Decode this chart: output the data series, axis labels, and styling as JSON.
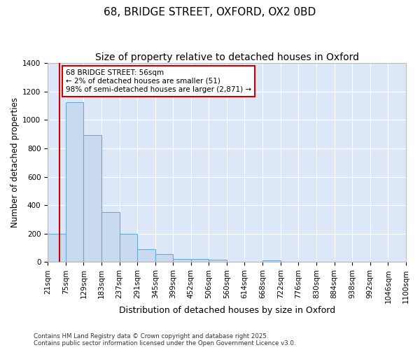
{
  "title1": "68, BRIDGE STREET, OXFORD, OX2 0BD",
  "title2": "Size of property relative to detached houses in Oxford",
  "xlabel": "Distribution of detached houses by size in Oxford",
  "ylabel": "Number of detached properties",
  "bins": [
    21,
    75,
    129,
    183,
    237,
    291,
    345,
    399,
    452,
    506,
    560,
    614,
    668,
    722,
    776,
    830,
    884,
    938,
    992,
    1046,
    1100
  ],
  "counts": [
    200,
    1125,
    895,
    350,
    197,
    90,
    55,
    22,
    20,
    15,
    0,
    0,
    10,
    0,
    0,
    0,
    0,
    0,
    0,
    0
  ],
  "bar_color": "#c9d9f0",
  "bar_edge_color": "#6aaad4",
  "property_size": 56,
  "vline_color": "#cc0000",
  "annotation_text": "68 BRIDGE STREET: 56sqm\n← 2% of detached houses are smaller (51)\n98% of semi-detached houses are larger (2,871) →",
  "annotation_box_color": "#ffffff",
  "annotation_box_edge": "#cc0000",
  "ylim": [
    0,
    1400
  ],
  "yticks": [
    0,
    200,
    400,
    600,
    800,
    1000,
    1200,
    1400
  ],
  "bg_color": "#dce8f8",
  "grid_color": "#ffffff",
  "fig_bg_color": "#ffffff",
  "footer1": "Contains HM Land Registry data © Crown copyright and database right 2025.",
  "footer2": "Contains public sector information licensed under the Open Government Licence v3.0.",
  "title1_fontsize": 11,
  "title2_fontsize": 10,
  "tick_fontsize": 7.5,
  "xlabel_fontsize": 9,
  "ylabel_fontsize": 8.5
}
